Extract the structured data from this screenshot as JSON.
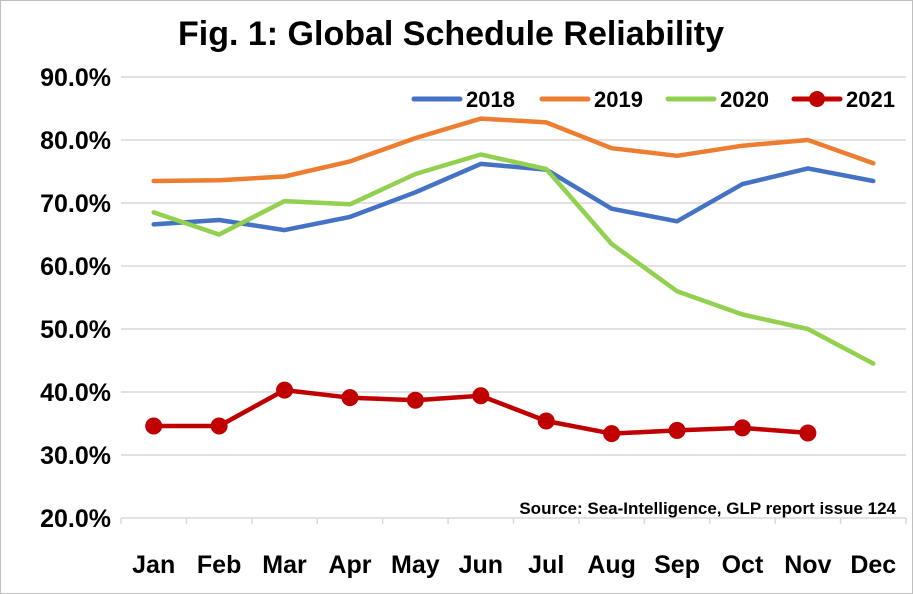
{
  "chart_data": {
    "type": "line",
    "title": "Fig. 1: Global Schedule Reliability",
    "xlabel": "",
    "ylabel": "",
    "ylim": [
      20,
      90
    ],
    "yticks": [
      20,
      30,
      40,
      50,
      60,
      70,
      80,
      90
    ],
    "ytick_labels": [
      "20.0%",
      "30.0%",
      "40.0%",
      "50.0%",
      "60.0%",
      "70.0%",
      "80.0%",
      "90.0%"
    ],
    "categories": [
      "Jan",
      "Feb",
      "Mar",
      "Apr",
      "May",
      "Jun",
      "Jul",
      "Aug",
      "Sep",
      "Oct",
      "Nov",
      "Dec"
    ],
    "grid": true,
    "legend_position": "top-right",
    "series": [
      {
        "name": "2018",
        "color": "#4472C4",
        "markers": false,
        "values": [
          66.6,
          67.3,
          65.7,
          67.8,
          71.7,
          76.2,
          75.3,
          69.1,
          67.1,
          73.0,
          75.5,
          73.5
        ]
      },
      {
        "name": "2019",
        "color": "#ED7D31",
        "markers": false,
        "values": [
          73.5,
          73.6,
          74.2,
          76.6,
          80.3,
          83.4,
          82.8,
          78.7,
          77.5,
          79.1,
          80.0,
          76.3
        ]
      },
      {
        "name": "2020",
        "color": "#92D050",
        "markers": false,
        "values": [
          68.5,
          65.0,
          70.3,
          69.8,
          74.6,
          77.7,
          75.4,
          63.5,
          56.0,
          52.3,
          50.0,
          44.5
        ]
      },
      {
        "name": "2021",
        "color": "#C00000",
        "markers": true,
        "values": [
          34.6,
          34.6,
          40.3,
          39.1,
          38.7,
          39.4,
          35.4,
          33.4,
          33.9,
          34.3,
          33.5,
          null
        ]
      }
    ],
    "annotation": "Source: Sea-Intelligence, GLP report issue 124"
  }
}
